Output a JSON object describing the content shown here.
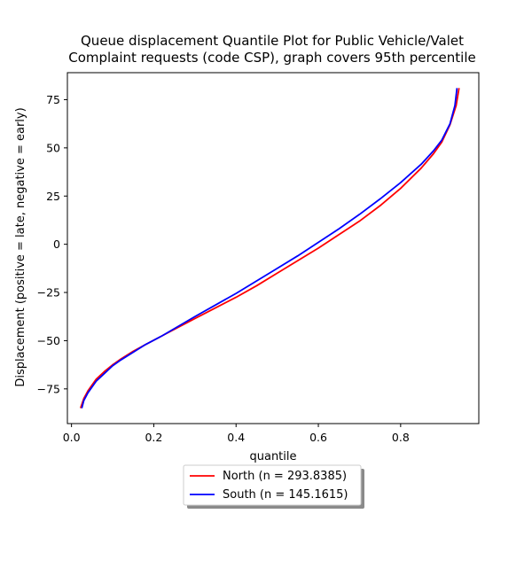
{
  "chart_data": {
    "type": "line",
    "title_lines": [
      "Queue displacement Quantile Plot for Public Vehicle/Valet",
      "Complaint  requests (code CSP), graph covers 95th percentile"
    ],
    "xlabel": "quantile",
    "ylabel": "Displacement (positive = late, negative = early)",
    "xlim": [
      -0.01,
      0.99
    ],
    "ylim": [
      -93,
      89
    ],
    "x_ticks": [
      0.0,
      0.2,
      0.4,
      0.6,
      0.8
    ],
    "x_tick_labels": [
      "0.0",
      "0.2",
      "0.4",
      "0.6",
      "0.8"
    ],
    "y_ticks": [
      -75,
      -50,
      -25,
      0,
      25,
      50,
      75
    ],
    "y_tick_labels": [
      "−75",
      "−50",
      "−25",
      "0",
      "25",
      "50",
      "75"
    ],
    "grid": false,
    "legend_position": "below-center",
    "series": [
      {
        "name": "North (n = 293.8385)",
        "color": "#ff0000",
        "points": [
          [
            0.022,
            -85
          ],
          [
            0.03,
            -80
          ],
          [
            0.04,
            -76
          ],
          [
            0.06,
            -70
          ],
          [
            0.08,
            -66
          ],
          [
            0.1,
            -62.5
          ],
          [
            0.12,
            -59.5
          ],
          [
            0.15,
            -55.5
          ],
          [
            0.18,
            -52
          ],
          [
            0.22,
            -47.5
          ],
          [
            0.26,
            -43
          ],
          [
            0.3,
            -38.5
          ],
          [
            0.35,
            -33
          ],
          [
            0.4,
            -27.5
          ],
          [
            0.45,
            -21.5
          ],
          [
            0.5,
            -15
          ],
          [
            0.55,
            -8.5
          ],
          [
            0.6,
            -2
          ],
          [
            0.65,
            5
          ],
          [
            0.7,
            12
          ],
          [
            0.75,
            20
          ],
          [
            0.8,
            29
          ],
          [
            0.85,
            39.5
          ],
          [
            0.88,
            47
          ],
          [
            0.9,
            53
          ],
          [
            0.92,
            62
          ],
          [
            0.935,
            72
          ],
          [
            0.942,
            81
          ]
        ]
      },
      {
        "name": "South (n = 145.1615)",
        "color": "#0000ff",
        "points": [
          [
            0.025,
            -85
          ],
          [
            0.03,
            -81
          ],
          [
            0.04,
            -77
          ],
          [
            0.06,
            -71
          ],
          [
            0.08,
            -67
          ],
          [
            0.1,
            -63
          ],
          [
            0.12,
            -60
          ],
          [
            0.15,
            -56
          ],
          [
            0.18,
            -52
          ],
          [
            0.22,
            -47.5
          ],
          [
            0.26,
            -42.5
          ],
          [
            0.3,
            -37.5
          ],
          [
            0.35,
            -31.5
          ],
          [
            0.4,
            -25.5
          ],
          [
            0.45,
            -19
          ],
          [
            0.5,
            -12.5
          ],
          [
            0.55,
            -6
          ],
          [
            0.6,
            1
          ],
          [
            0.65,
            8
          ],
          [
            0.7,
            15.5
          ],
          [
            0.75,
            23.5
          ],
          [
            0.8,
            32
          ],
          [
            0.85,
            41.5
          ],
          [
            0.88,
            48.5
          ],
          [
            0.9,
            54
          ],
          [
            0.92,
            62.5
          ],
          [
            0.932,
            72
          ],
          [
            0.937,
            81
          ]
        ]
      }
    ]
  }
}
